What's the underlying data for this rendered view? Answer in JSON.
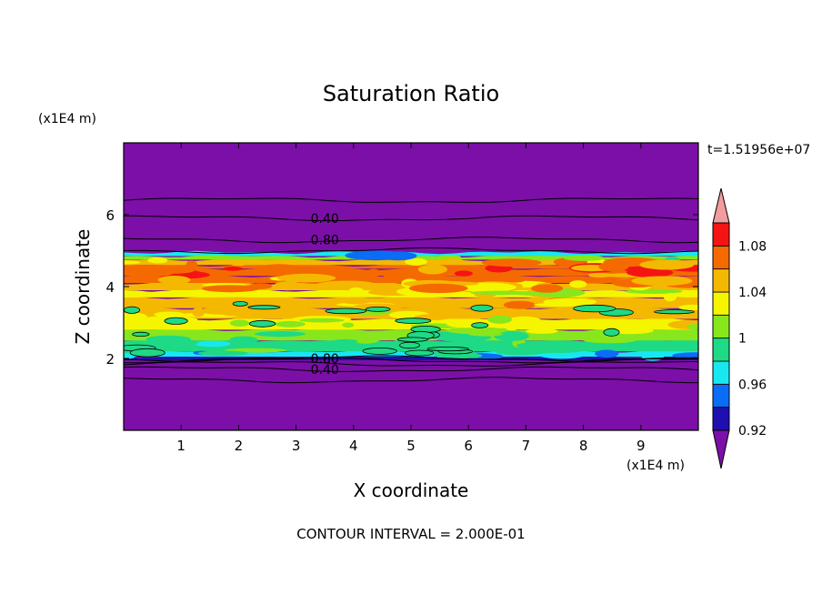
{
  "chart_data": {
    "type": "heatmap",
    "title": "Saturation Ratio",
    "xlabel": "X coordinate",
    "ylabel": "Z coordinate",
    "x_unit": "(x1E4 m)",
    "y_unit": "(x1E4 m)",
    "xlim": [
      0,
      10
    ],
    "ylim": [
      0,
      8
    ],
    "x_ticks": [
      1,
      2,
      3,
      4,
      5,
      6,
      7,
      8,
      9
    ],
    "y_ticks": [
      2,
      4,
      6
    ],
    "time_label": "t=1.51956e+07",
    "contour_interval_label": "CONTOUR INTERVAL = 2.000E-01",
    "contour_labels": [
      {
        "text": "0.40",
        "x": 3.5,
        "z": 5.9
      },
      {
        "text": "0.80",
        "x": 3.5,
        "z": 5.3
      },
      {
        "text": "0.80",
        "x": 3.5,
        "z": 2.0
      },
      {
        "text": "0.40",
        "x": 3.5,
        "z": 1.7
      }
    ],
    "colorbar": {
      "levels": [
        0.92,
        0.94,
        0.96,
        0.98,
        1.0,
        1.02,
        1.04,
        1.06,
        1.08,
        1.1
      ],
      "tick_labels": [
        "0.92",
        "0.96",
        "1",
        "1.04",
        "1.08"
      ],
      "tick_values": [
        0.92,
        0.96,
        1.0,
        1.04,
        1.08
      ],
      "colors": [
        "#7c0fa8",
        "#1f0fb0",
        "#0b6cf5",
        "#17e8f0",
        "#1ed985",
        "#88e61c",
        "#f5f500",
        "#f5b800",
        "#f56a00",
        "#f51414",
        "#f29ca0"
      ]
    },
    "background_color": "#7c0fa8",
    "profile": {
      "z": [
        1.95,
        2.05,
        2.2,
        2.5,
        2.8,
        3.1,
        3.4,
        3.7,
        3.9,
        4.1,
        4.3,
        4.5,
        4.6,
        4.75,
        4.85,
        4.95
      ],
      "ratio": [
        0.93,
        0.97,
        0.99,
        1.01,
        1.03,
        1.04,
        1.045,
        1.03,
        1.05,
        1.06,
        1.075,
        1.07,
        1.05,
        1.0,
        0.96,
        0.93
      ]
    }
  }
}
